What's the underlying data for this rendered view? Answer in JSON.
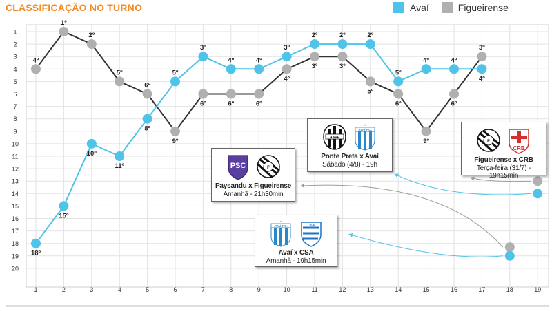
{
  "title": "CLASSIFICAÇÃO NO TURNO",
  "colors": {
    "avai": "#4fc3e8",
    "figueirense": "#b0b0b0",
    "figueirense_line": "#333333",
    "title": "#f08a24",
    "avai_label": "#333333"
  },
  "legend": [
    {
      "name": "Avaí",
      "color": "#4fc3e8"
    },
    {
      "name": "Figueirense",
      "color": "#b0b0b0"
    }
  ],
  "chart_data": {
    "type": "line",
    "x": [
      1,
      2,
      3,
      4,
      5,
      6,
      7,
      8,
      9,
      10,
      11,
      12,
      13,
      14,
      15,
      16,
      17,
      18,
      19
    ],
    "y_ticks": [
      1,
      2,
      3,
      4,
      5,
      6,
      7,
      8,
      9,
      10,
      11,
      12,
      13,
      14,
      15,
      16,
      17,
      18,
      19,
      20
    ],
    "ylim": [
      1,
      20
    ],
    "y_inverted": true,
    "grid": true,
    "series": [
      {
        "name": "Avaí",
        "x": [
          1,
          2,
          3,
          4,
          5,
          6,
          7,
          8,
          9,
          10,
          11,
          12,
          13,
          14,
          15,
          16,
          17
        ],
        "values": [
          18,
          15,
          10,
          11,
          8,
          5,
          3,
          4,
          4,
          3,
          2,
          2,
          2,
          5,
          4,
          4,
          4
        ],
        "labels": [
          "18º",
          "15º",
          "10º",
          "11º",
          "8º",
          "5º",
          "3º",
          "4º",
          "4º",
          "3º",
          "2º",
          "2º",
          "2º",
          "5º",
          "4º",
          "4º",
          "4º"
        ],
        "next_x": 19,
        "next_value": 14
      },
      {
        "name": "Figueirense",
        "x": [
          1,
          2,
          3,
          4,
          5,
          6,
          7,
          8,
          9,
          10,
          11,
          12,
          13,
          14,
          15,
          16,
          17
        ],
        "values": [
          4,
          1,
          2,
          5,
          6,
          9,
          6,
          6,
          6,
          4,
          3,
          3,
          5,
          6,
          9,
          6,
          3
        ],
        "labels": [
          "4º",
          "1º",
          "2º",
          "5º",
          "6º",
          "9º",
          "6º",
          "6º",
          "6º",
          "4º",
          "3º",
          "3º",
          "5º",
          "6º",
          "9º",
          "6º",
          "3º"
        ],
        "next_x": 19,
        "next_value": 13
      }
    ],
    "extra_points": [
      {
        "series": "Figueirense",
        "x": 18,
        "value": 18.3
      },
      {
        "series": "Avaí",
        "x": 18,
        "value": 19
      }
    ]
  },
  "matches": [
    {
      "id": "ponte",
      "title": "Ponte Preta x Avaí",
      "time": "Sábado (4/8) - 19h",
      "home": "PONTE PRETA",
      "away": "AVAÍ F.C."
    },
    {
      "id": "figcrb",
      "title": "Figueirense x CRB",
      "time": "Terça-feira (31/7) - 19h15min",
      "home": "FIGUEIRENSE",
      "away": "CRB"
    },
    {
      "id": "paysandu",
      "title": "Paysandu x Figueirense",
      "time": "Amanhã - 21h30min",
      "home": "PAYSANDU",
      "away": "FIGUEIRENSE"
    },
    {
      "id": "avaicsa",
      "title": "Avaí x CSA",
      "time": "Amanhã - 19h15min",
      "home": "AVAÍ F.C.",
      "away": "CSA"
    }
  ]
}
